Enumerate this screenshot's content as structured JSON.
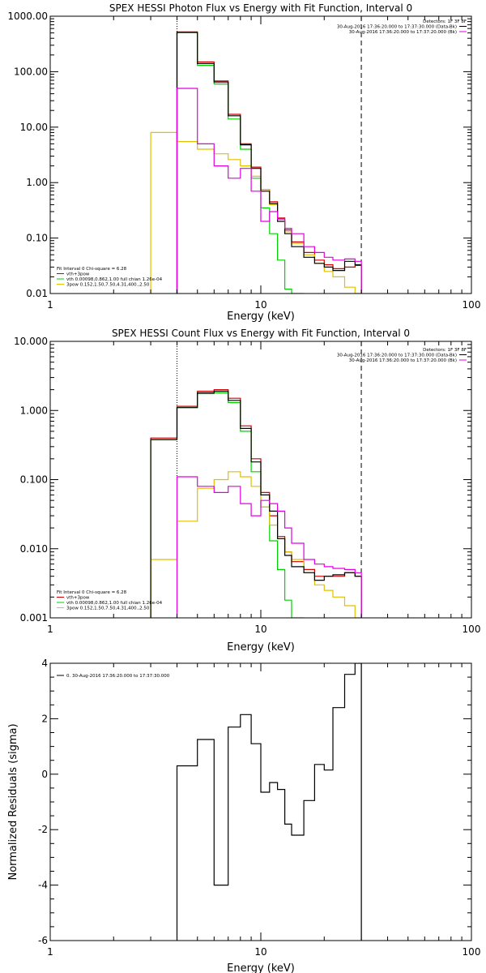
{
  "chart_data": [
    {
      "type": "line",
      "title": "SPEX HESSI Photon Flux vs Energy with Fit Function, Interval 0",
      "xlabel": "Energy (keV)",
      "ylabel": "",
      "xscale": "log",
      "yscale": "log",
      "xlim": [
        1,
        100
      ],
      "ylim": [
        0.01,
        1000
      ],
      "x_ticks": [
        "1",
        "10",
        "100"
      ],
      "y_ticks": [
        {
          "v": 0.01,
          "label": "0.01"
        },
        {
          "v": 0.1,
          "label": "0.10"
        },
        {
          "v": 1,
          "label": "1.00"
        },
        {
          "v": 10,
          "label": "10.00"
        },
        {
          "v": 100,
          "label": "100.00"
        },
        {
          "v": 1000,
          "label": "1000.00"
        }
      ],
      "grid": false,
      "vlines": [
        {
          "x": 4.0,
          "style": "dotted",
          "color": "#000000"
        },
        {
          "x": 30.0,
          "style": "dashed",
          "color": "#000000"
        }
      ],
      "legend_topright": {
        "lines": [
          {
            "text": "Detectors: 1F 3F 8F",
            "color": null
          },
          {
            "text": "30-Aug-2016 17:36:20.000 to 17:37:30.000 (Data-Bk)",
            "color": "#000000"
          },
          {
            "text": "30-Aug-2016 17:36:20.000 to 17:37:20.000 (Bk)",
            "color": "#e000e0"
          }
        ]
      },
      "legend_bottomleft": {
        "lines": [
          {
            "text": "Fit Interval 0   Chi-square = 6.28",
            "color": null
          },
          {
            "text": "vth+3pow",
            "color": "#d00000"
          },
          {
            "text": "vth 0.00098,0.862,1.00   full chian 1.26e-04",
            "color": "#00d000"
          },
          {
            "text": "3pow 0.152,1.50,7.50,4.31,400.,2.50",
            "color": "#e0c000"
          }
        ]
      },
      "edges": [
        3.0,
        4.0,
        5.0,
        6.0,
        7.0,
        8.0,
        9.0,
        10.0,
        11.0,
        12.0,
        13.0,
        14.0,
        16.0,
        18.0,
        20.0,
        22.0,
        25.0,
        28.0,
        30.0
      ],
      "series": [
        {
          "name": "vth+3pow",
          "color": "#d00000",
          "values": [
            null,
            520,
            150,
            68,
            17,
            5.0,
            1.9,
            0.75,
            0.45,
            0.23,
            0.14,
            0.085,
            0.055,
            0.04,
            0.033,
            0.028,
            0.03,
            0.032
          ]
        },
        {
          "name": "vth",
          "color": "#00d000",
          "values": [
            null,
            510,
            130,
            60,
            14,
            4.0,
            1.2,
            0.35,
            0.12,
            0.04,
            0.012,
            0.001,
            null,
            null,
            null,
            null,
            null,
            null
          ]
        },
        {
          "name": "3pow",
          "color": "#e0c000",
          "values": [
            8.0,
            5.5,
            4.0,
            3.3,
            2.6,
            2.0,
            1.3,
            0.75,
            0.4,
            0.22,
            0.13,
            0.08,
            0.05,
            0.035,
            0.025,
            0.02,
            0.013,
            0.01
          ]
        },
        {
          "name": "Data-Bk",
          "color": "#000000",
          "values": [
            null,
            510,
            140,
            65,
            16,
            4.8,
            1.8,
            0.7,
            0.42,
            0.2,
            0.12,
            0.07,
            0.045,
            0.035,
            0.03,
            0.026,
            0.038,
            0.033
          ]
        },
        {
          "name": "Bk",
          "color": "#e000e0",
          "values": [
            null,
            50,
            5.0,
            2.0,
            1.2,
            1.8,
            0.7,
            0.2,
            0.3,
            0.22,
            0.15,
            0.12,
            0.07,
            0.055,
            0.045,
            0.04,
            0.042,
            0.038
          ]
        }
      ]
    },
    {
      "type": "line",
      "title": "SPEX HESSI Count Flux vs Energy with Fit Function, Interval 0",
      "xlabel": "Energy (keV)",
      "ylabel": "",
      "xscale": "log",
      "yscale": "log",
      "xlim": [
        1,
        100
      ],
      "ylim": [
        0.001,
        10
      ],
      "x_ticks": [
        "1",
        "10",
        "100"
      ],
      "y_ticks": [
        {
          "v": 0.001,
          "label": "0.001"
        },
        {
          "v": 0.01,
          "label": "0.010"
        },
        {
          "v": 0.1,
          "label": "0.100"
        },
        {
          "v": 1,
          "label": "1.000"
        },
        {
          "v": 10,
          "label": "10.000"
        }
      ],
      "grid": false,
      "vlines": [
        {
          "x": 4.0,
          "style": "dotted",
          "color": "#000000"
        },
        {
          "x": 30.0,
          "style": "dashed",
          "color": "#000000"
        }
      ],
      "legend_topright": {
        "lines": [
          {
            "text": "Detectors: 1F 3F 8F",
            "color": null
          },
          {
            "text": "30-Aug-2016 17:36:20.000 to 17:37:30.000 (Data-Bk)",
            "color": "#000000"
          },
          {
            "text": "30-Aug-2016 17:36:20.000 to 17:37:20.000 (Bk)",
            "color": "#e000e0"
          }
        ]
      },
      "legend_bottomleft": {
        "lines": [
          {
            "text": "Fit Interval 0   Chi-square = 6.28",
            "color": null
          },
          {
            "text": "vth+3pow",
            "color": "#d00000"
          },
          {
            "text": "vth 0.00098,0.862,1.00   full chian 1.26e-04",
            "color": "#00d000"
          },
          {
            "text": "3pow 0.152,1.50,7.50,4.31,400.,2.50",
            "color": "#e0c000"
          }
        ]
      },
      "edges": [
        3.0,
        4.0,
        5.0,
        6.0,
        7.0,
        8.0,
        9.0,
        10.0,
        11.0,
        12.0,
        13.0,
        14.0,
        16.0,
        18.0,
        20.0,
        22.0,
        25.0,
        28.0,
        30.0
      ],
      "series": [
        {
          "name": "vth+3pow",
          "color": "#d00000",
          "values": [
            0.4,
            1.15,
            1.9,
            2.0,
            1.5,
            0.6,
            0.2,
            0.065,
            0.03,
            0.015,
            0.009,
            0.0065,
            0.005,
            0.004,
            0.004,
            0.004,
            0.0045,
            0.004
          ]
        },
        {
          "name": "vth",
          "color": "#00d000",
          "values": [
            0.38,
            1.1,
            1.75,
            1.8,
            1.3,
            0.5,
            0.13,
            0.04,
            0.013,
            0.005,
            0.0018,
            0.001,
            null,
            null,
            null,
            null,
            null,
            null
          ]
        },
        {
          "name": "3pow",
          "color": "#e0c000",
          "values": [
            0.007,
            0.025,
            0.075,
            0.1,
            0.13,
            0.11,
            0.08,
            0.04,
            0.022,
            0.014,
            0.009,
            0.007,
            0.0045,
            0.003,
            0.0025,
            0.002,
            0.0015,
            0.001
          ]
        },
        {
          "name": "Data-Bk",
          "color": "#000000",
          "values": [
            0.38,
            1.1,
            1.8,
            1.9,
            1.4,
            0.55,
            0.18,
            0.06,
            0.035,
            0.014,
            0.008,
            0.0055,
            0.0045,
            0.0035,
            0.004,
            0.0042,
            0.0045,
            0.004
          ]
        },
        {
          "name": "Bk",
          "color": "#e000e0",
          "values": [
            null,
            0.11,
            0.08,
            0.065,
            0.08,
            0.045,
            0.03,
            0.05,
            0.045,
            0.035,
            0.02,
            0.012,
            0.007,
            0.006,
            0.0055,
            0.0052,
            0.005,
            0.0045
          ]
        }
      ]
    },
    {
      "type": "line",
      "title": "",
      "xlabel": "Energy (keV)",
      "ylabel": "Normalized Residuals (sigma)",
      "xscale": "log",
      "yscale": "linear",
      "xlim": [
        1,
        100
      ],
      "ylim": [
        -6,
        4
      ],
      "x_ticks": [
        "1",
        "10",
        "100"
      ],
      "y_ticks": [
        {
          "v": -6,
          "label": "-6"
        },
        {
          "v": -4,
          "label": "-4"
        },
        {
          "v": -2,
          "label": "-2"
        },
        {
          "v": 0,
          "label": "0"
        },
        {
          "v": 2,
          "label": "2"
        },
        {
          "v": 4,
          "label": "4"
        }
      ],
      "grid": false,
      "vlines": [
        {
          "x": 30.0,
          "style": "solid",
          "color": "#000000"
        }
      ],
      "legend_topleft": {
        "lines": [
          {
            "text": "0. 30-Aug-2016 17:36:20.000 to 17:37:30.000",
            "color": "#000000"
          }
        ]
      },
      "edges": [
        4.0,
        5.0,
        6.0,
        7.0,
        8.0,
        9.0,
        10.0,
        11.0,
        12.0,
        13.0,
        14.0,
        16.0,
        18.0,
        20.0,
        22.0,
        25.0,
        28.0,
        30.0
      ],
      "series": [
        {
          "name": "",
          "color": "#000000",
          "values": [
            0.3,
            1.25,
            -4.0,
            1.7,
            2.15,
            1.1,
            -0.65,
            -0.3,
            -0.55,
            -1.8,
            -2.2,
            -0.95,
            0.35,
            0.15,
            2.4,
            3.6,
            4.0
          ]
        }
      ]
    }
  ]
}
